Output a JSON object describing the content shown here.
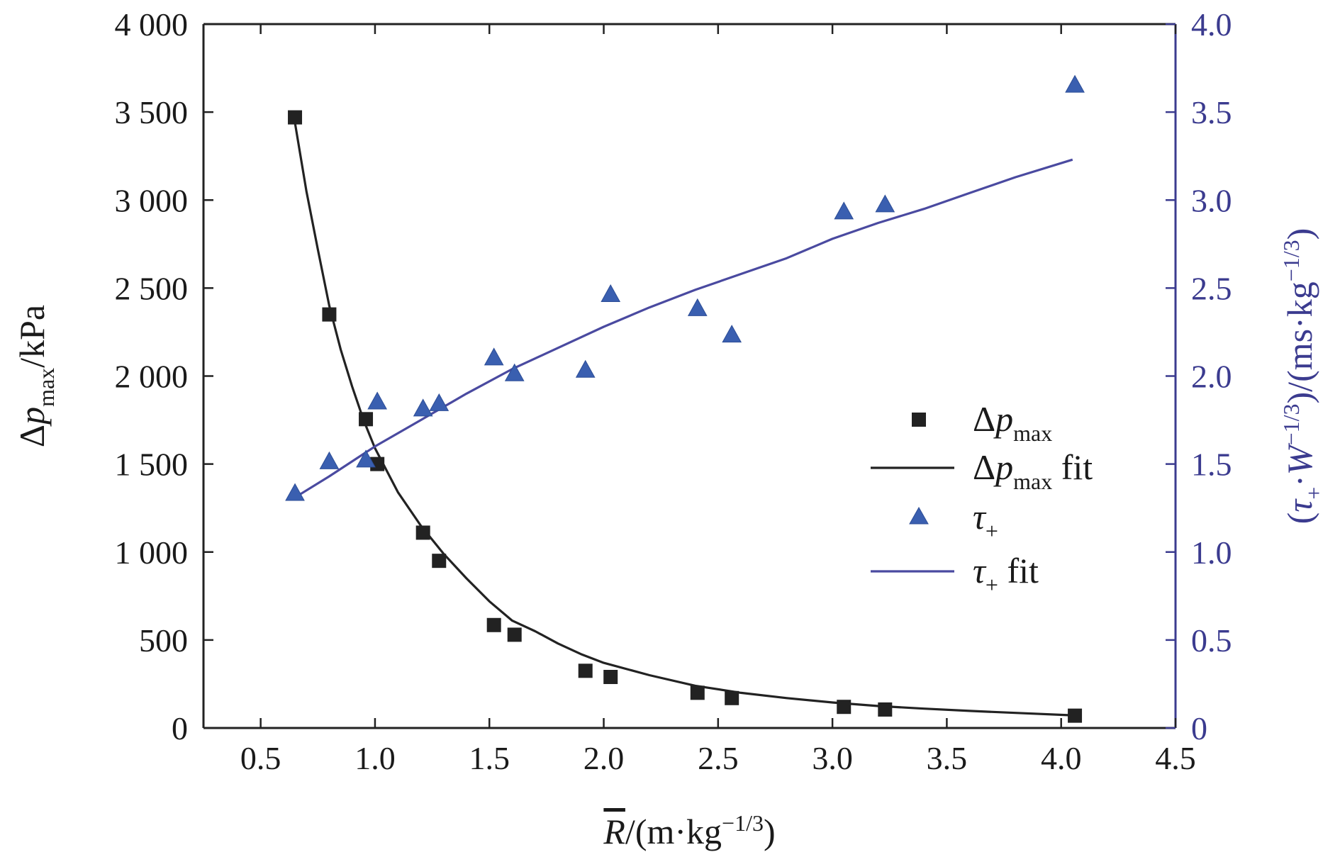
{
  "chart_data": {
    "type": "scatter",
    "x_axis": {
      "range": [
        0.25,
        4.5
      ],
      "ticks": [
        0.5,
        1.0,
        1.5,
        2.0,
        2.5,
        3.0,
        3.5,
        4.0,
        4.5
      ],
      "tick_labels": [
        "0.5",
        "1.0",
        "1.5",
        "2.0",
        "2.5",
        "3.0",
        "3.5",
        "4.0",
        "4.5"
      ],
      "label": {
        "symbol": "R",
        "overline": true,
        "text": "/(m·kg",
        "sup": "−1/3",
        "close": ")"
      }
    },
    "y_axis_left": {
      "range": [
        0,
        4000
      ],
      "ticks": [
        0,
        500,
        1000,
        1500,
        2000,
        2500,
        3000,
        3500,
        4000
      ],
      "tick_labels": [
        "0",
        "500",
        "1 000",
        "1 500",
        "2 000",
        "2 500",
        "3 000",
        "3 500",
        "4 000"
      ],
      "label": {
        "prefix": "Δ",
        "symbol": "p",
        "sub": "max",
        "suffix": "/kPa"
      }
    },
    "y_axis_right": {
      "range": [
        0,
        4.0
      ],
      "ticks": [
        0,
        0.5,
        1.0,
        1.5,
        2.0,
        2.5,
        3.0,
        3.5,
        4.0
      ],
      "tick_labels": [
        "0",
        "0.5",
        "1.0",
        "1.5",
        "2.0",
        "2.5",
        "3.0",
        "3.5",
        "4.0"
      ],
      "label": {
        "open": "(",
        "tau": "τ",
        "tau_sub": "+",
        "dot": "·",
        "W": "W",
        "W_sup": "−1/3",
        "tail": ")/(ms·kg",
        "tail_sup": "−1/3",
        "close": ")"
      },
      "color": "#3b3b8f"
    },
    "series": [
      {
        "name": "Δp max",
        "axis": "left",
        "kind": "scatter",
        "marker": "square",
        "color": "#222222",
        "points": [
          [
            0.65,
            3470
          ],
          [
            0.8,
            2350
          ],
          [
            0.96,
            1755
          ],
          [
            1.01,
            1500
          ],
          [
            1.21,
            1110
          ],
          [
            1.28,
            950
          ],
          [
            1.52,
            585
          ],
          [
            1.61,
            530
          ],
          [
            1.92,
            325
          ],
          [
            2.03,
            290
          ],
          [
            2.41,
            200
          ],
          [
            2.56,
            170
          ],
          [
            3.05,
            120
          ],
          [
            3.23,
            105
          ],
          [
            4.06,
            70
          ]
        ]
      },
      {
        "name": "Δp max fit",
        "axis": "left",
        "kind": "line",
        "color": "#222222",
        "points": [
          [
            0.65,
            3440
          ],
          [
            0.7,
            3050
          ],
          [
            0.75,
            2720
          ],
          [
            0.8,
            2400
          ],
          [
            0.85,
            2150
          ],
          [
            0.9,
            1940
          ],
          [
            0.95,
            1750
          ],
          [
            1.0,
            1590
          ],
          [
            1.1,
            1340
          ],
          [
            1.2,
            1150
          ],
          [
            1.3,
            990
          ],
          [
            1.4,
            850
          ],
          [
            1.5,
            720
          ],
          [
            1.6,
            610
          ],
          [
            1.7,
            550
          ],
          [
            1.8,
            480
          ],
          [
            1.9,
            420
          ],
          [
            2.0,
            370
          ],
          [
            2.2,
            300
          ],
          [
            2.4,
            240
          ],
          [
            2.6,
            200
          ],
          [
            2.8,
            170
          ],
          [
            3.0,
            145
          ],
          [
            3.2,
            125
          ],
          [
            3.4,
            110
          ],
          [
            3.6,
            97
          ],
          [
            3.8,
            86
          ],
          [
            4.05,
            72
          ]
        ]
      },
      {
        "name": "τ +",
        "axis": "right",
        "kind": "scatter",
        "marker": "triangle",
        "color": "#3a5fb0",
        "points": [
          [
            0.65,
            1.33
          ],
          [
            0.8,
            1.51
          ],
          [
            0.96,
            1.52
          ],
          [
            1.01,
            1.85
          ],
          [
            1.21,
            1.81
          ],
          [
            1.28,
            1.84
          ],
          [
            1.52,
            2.1
          ],
          [
            1.61,
            2.01
          ],
          [
            1.92,
            2.03
          ],
          [
            2.03,
            2.46
          ],
          [
            2.41,
            2.38
          ],
          [
            2.56,
            2.23
          ],
          [
            3.05,
            2.93
          ],
          [
            3.23,
            2.97
          ],
          [
            4.06,
            3.65
          ]
        ]
      },
      {
        "name": "τ + fit",
        "axis": "right",
        "kind": "line",
        "color": "#4a4aa0",
        "points": [
          [
            0.65,
            1.31
          ],
          [
            0.8,
            1.43
          ],
          [
            1.0,
            1.6
          ],
          [
            1.2,
            1.75
          ],
          [
            1.4,
            1.9
          ],
          [
            1.6,
            2.04
          ],
          [
            1.8,
            2.16
          ],
          [
            2.0,
            2.28
          ],
          [
            2.2,
            2.39
          ],
          [
            2.4,
            2.49
          ],
          [
            2.6,
            2.58
          ],
          [
            2.8,
            2.67
          ],
          [
            3.0,
            2.78
          ],
          [
            3.2,
            2.87
          ],
          [
            3.4,
            2.95
          ],
          [
            3.6,
            3.04
          ],
          [
            3.8,
            3.13
          ],
          [
            4.05,
            3.23
          ]
        ]
      }
    ],
    "legend": {
      "position": "center-right",
      "entries": [
        {
          "prefix": "Δ",
          "symbol": "p",
          "sub": "max",
          "suffix": ""
        },
        {
          "prefix": "Δ",
          "symbol": "p",
          "sub": "max",
          "suffix": " fit"
        },
        {
          "prefix": "",
          "symbol": "τ",
          "sub": "+",
          "suffix": ""
        },
        {
          "prefix": "",
          "symbol": "τ",
          "sub": "+",
          "suffix": " fit"
        }
      ]
    },
    "grid": false
  }
}
